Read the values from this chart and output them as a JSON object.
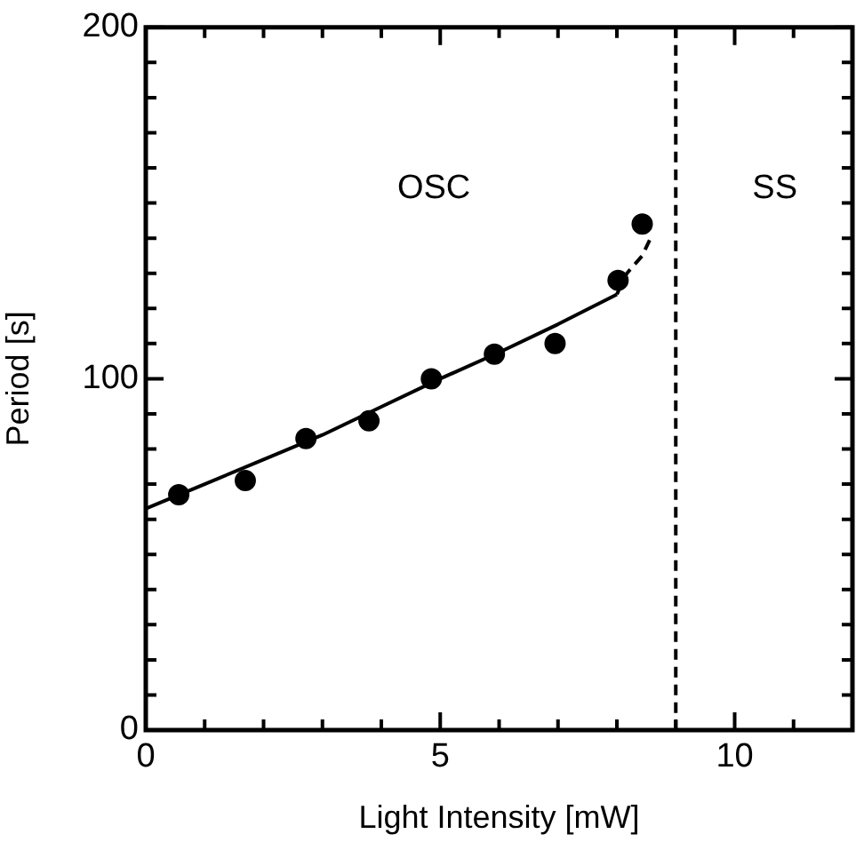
{
  "chart_data": {
    "type": "scatter",
    "xlabel": "Light Intensity [mW]",
    "ylabel": "Period [s]",
    "xlim": [
      0,
      12
    ],
    "ylim": [
      0,
      200
    ],
    "xticks": [
      0,
      {
        "value": 1,
        "label": null
      },
      {
        "value": 2,
        "label": null
      },
      {
        "value": 3,
        "label": null
      },
      {
        "value": 4,
        "label": null
      },
      5,
      {
        "value": 6,
        "label": null
      },
      {
        "value": 7,
        "label": null
      },
      {
        "value": 8,
        "label": null
      },
      {
        "value": 9,
        "label": null
      },
      10,
      {
        "value": 11,
        "label": null
      }
    ],
    "yticks": [
      0,
      {
        "value": 10,
        "label": null
      },
      {
        "value": 20,
        "label": null
      },
      {
        "value": 30,
        "label": null
      },
      {
        "value": 40,
        "label": null
      },
      {
        "value": 50,
        "label": null
      },
      {
        "value": 60,
        "label": null
      },
      {
        "value": 70,
        "label": null
      },
      {
        "value": 80,
        "label": null
      },
      {
        "value": 90,
        "label": null
      },
      100,
      {
        "value": 110,
        "label": null
      },
      {
        "value": 120,
        "label": null
      },
      {
        "value": 130,
        "label": null
      },
      {
        "value": 140,
        "label": null
      },
      {
        "value": 150,
        "label": null
      },
      {
        "value": 160,
        "label": null
      },
      {
        "value": 170,
        "label": null
      },
      {
        "value": 180,
        "label": null
      },
      {
        "value": 190,
        "label": null
      },
      200
    ],
    "grid": false,
    "legend": false,
    "series": [
      {
        "type": "scatter",
        "color": "#000000",
        "marker": "circle",
        "x": [
          0.56,
          1.69,
          2.72,
          3.79,
          4.85,
          5.92,
          6.95,
          8.02,
          8.43
        ],
        "values": [
          67,
          71,
          83,
          88,
          100,
          107,
          110,
          128,
          144
        ]
      },
      {
        "type": "line",
        "color": "#000000",
        "marker": "none",
        "line_style": "solid",
        "x": [
          0,
          1,
          2,
          3,
          4,
          5,
          6,
          7,
          8
        ],
        "values": [
          63,
          70,
          77,
          84,
          92,
          100,
          107.5,
          115.5,
          124
        ]
      },
      {
        "type": "line",
        "color": "#000000",
        "marker": "none",
        "line_style": "dashed",
        "x": [
          8,
          8.17,
          8.43,
          8.6
        ],
        "values": [
          124,
          130,
          135,
          141
        ]
      }
    ],
    "ref_lines": [
      {
        "axis": "x",
        "value": 9,
        "line_style": "dashed",
        "color": "#000000"
      }
    ],
    "annotations": [
      "OSC",
      "SS"
    ]
  }
}
